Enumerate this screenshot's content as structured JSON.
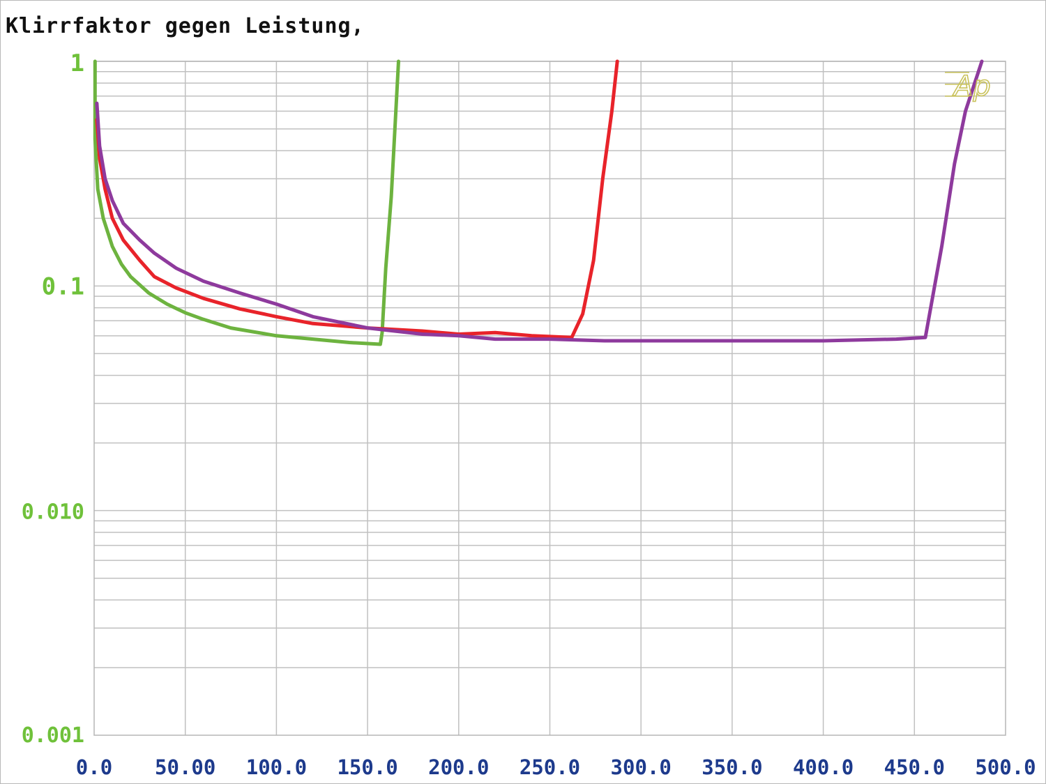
{
  "chart_data": {
    "type": "line",
    "title": "Klirrfaktor gegen Leistung,",
    "xlabel": "",
    "ylabel": "",
    "xlim": [
      0,
      500
    ],
    "ylim": [
      0.001,
      1
    ],
    "y_scale": "log",
    "grid": true,
    "x_ticks": [
      "0.0",
      "50.00",
      "100.0",
      "150.0",
      "200.0",
      "250.0",
      "300.0",
      "350.0",
      "400.0",
      "450.0",
      "500.0"
    ],
    "y_ticks": [
      {
        "value": 1,
        "label": "1"
      },
      {
        "value": 0.1,
        "label": "0.1"
      },
      {
        "value": 0.01,
        "label": "0.010"
      },
      {
        "value": 0.001,
        "label": "0.001"
      }
    ],
    "logo": "Ap",
    "colors": {
      "axis_text_y": "#6fc13a",
      "axis_text_x": "#1d3a8c",
      "grid": "#c0c0c0",
      "logo": "#c9c25a"
    },
    "series": [
      {
        "color": "#6db33f",
        "points": [
          [
            0.5,
            1.0
          ],
          [
            0.5,
            0.45
          ],
          [
            2,
            0.27
          ],
          [
            5,
            0.2
          ],
          [
            10,
            0.15
          ],
          [
            15,
            0.125
          ],
          [
            20,
            0.11
          ],
          [
            30,
            0.093
          ],
          [
            40,
            0.083
          ],
          [
            50,
            0.076
          ],
          [
            60,
            0.071
          ],
          [
            75,
            0.065
          ],
          [
            100,
            0.06
          ],
          [
            120,
            0.058
          ],
          [
            140,
            0.056
          ],
          [
            157,
            0.055
          ],
          [
            158,
            0.062
          ],
          [
            160,
            0.12
          ],
          [
            163,
            0.25
          ],
          [
            165,
            0.5
          ],
          [
            167,
            1.0
          ]
        ]
      },
      {
        "color": "#e8232a",
        "points": [
          [
            1.5,
            0.55
          ],
          [
            3,
            0.37
          ],
          [
            6,
            0.27
          ],
          [
            10,
            0.2
          ],
          [
            16,
            0.16
          ],
          [
            25,
            0.13
          ],
          [
            33,
            0.11
          ],
          [
            45,
            0.098
          ],
          [
            60,
            0.088
          ],
          [
            80,
            0.079
          ],
          [
            100,
            0.073
          ],
          [
            120,
            0.068
          ],
          [
            150,
            0.065
          ],
          [
            180,
            0.063
          ],
          [
            200,
            0.061
          ],
          [
            220,
            0.062
          ],
          [
            240,
            0.06
          ],
          [
            262,
            0.059
          ],
          [
            268,
            0.075
          ],
          [
            274,
            0.13
          ],
          [
            279,
            0.3
          ],
          [
            284,
            0.6
          ],
          [
            287,
            1.0
          ]
        ]
      },
      {
        "color": "#8e3a9d",
        "points": [
          [
            1.5,
            0.65
          ],
          [
            3,
            0.42
          ],
          [
            6,
            0.3
          ],
          [
            10,
            0.24
          ],
          [
            16,
            0.19
          ],
          [
            25,
            0.16
          ],
          [
            33,
            0.14
          ],
          [
            45,
            0.12
          ],
          [
            60,
            0.105
          ],
          [
            80,
            0.093
          ],
          [
            100,
            0.083
          ],
          [
            120,
            0.073
          ],
          [
            150,
            0.065
          ],
          [
            180,
            0.061
          ],
          [
            200,
            0.06
          ],
          [
            220,
            0.058
          ],
          [
            250,
            0.058
          ],
          [
            280,
            0.057
          ],
          [
            300,
            0.057
          ],
          [
            350,
            0.057
          ],
          [
            400,
            0.057
          ],
          [
            440,
            0.058
          ],
          [
            456,
            0.059
          ],
          [
            465,
            0.15
          ],
          [
            472,
            0.35
          ],
          [
            478,
            0.6
          ],
          [
            487,
            1.0
          ]
        ]
      }
    ]
  }
}
